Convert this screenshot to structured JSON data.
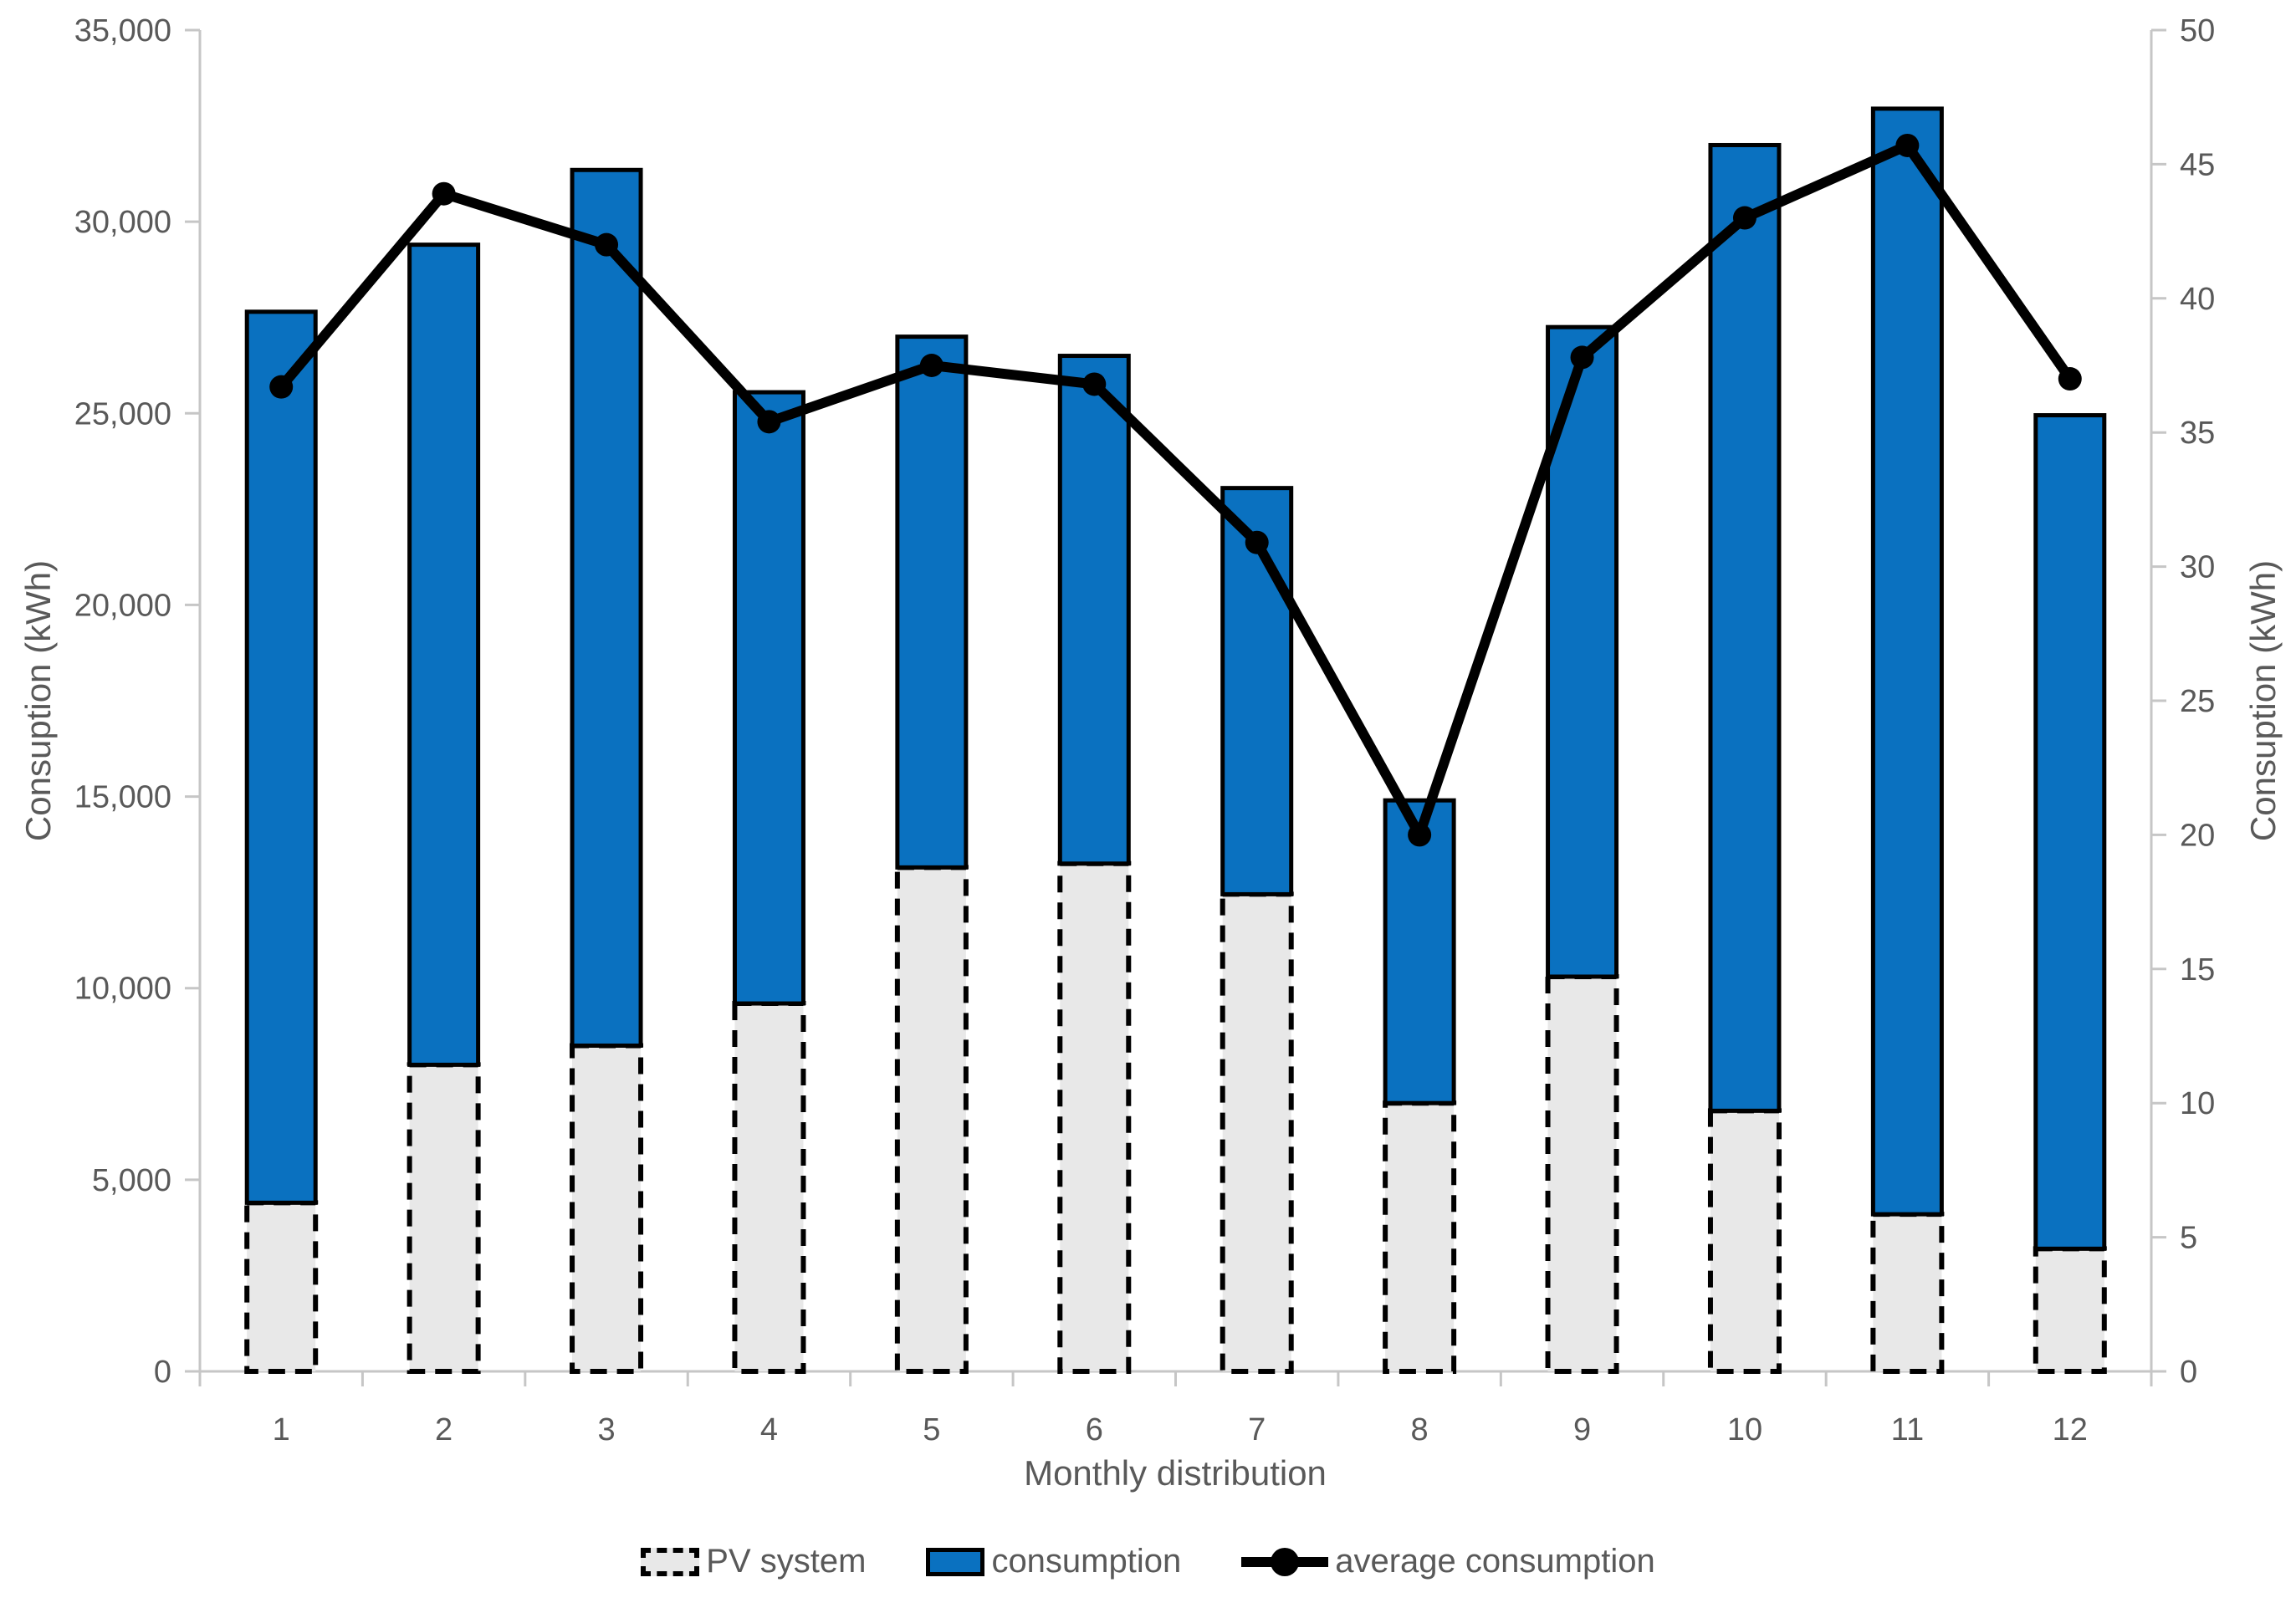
{
  "chart_data": {
    "type": "combo",
    "categories": [
      "1",
      "2",
      "3",
      "4",
      "5",
      "6",
      "7",
      "8",
      "9",
      "10",
      "11",
      "12"
    ],
    "x_axis": {
      "title": "Monthly distribution",
      "tick_labels": [
        "1",
        "2",
        "3",
        "4",
        "5",
        "6",
        "7",
        "8",
        "9",
        "10",
        "11",
        "12"
      ]
    },
    "left_axis": {
      "title": "Consuption (kWh)",
      "min": 0,
      "max": 35000,
      "step": 5000,
      "tick_labels": [
        "0",
        "5,000",
        "10,000",
        "15,000",
        "20,000",
        "25,000",
        "30,000",
        "35,000"
      ]
    },
    "right_axis": {
      "title": "Consuption (kWh)",
      "min": 0,
      "max": 50,
      "step": 5,
      "tick_labels": [
        "0",
        "5",
        "10",
        "15",
        "20",
        "25",
        "30",
        "35",
        "40",
        "45",
        "50"
      ]
    },
    "series": [
      {
        "name": "PV system",
        "type": "bar",
        "stack": "total",
        "axis": "left",
        "color": "#e8e8e8",
        "border_color": "#000000",
        "border_style": "dashed",
        "values": [
          4400,
          8000,
          8500,
          9600,
          13150,
          13250,
          12450,
          7000,
          10300,
          6800,
          4100,
          3200
        ]
      },
      {
        "name": "consumption",
        "type": "bar",
        "stack": "total",
        "axis": "left",
        "color": "#0a71c0",
        "border_color": "#000000",
        "border_style": "solid",
        "values": [
          23250,
          21400,
          22850,
          15950,
          13850,
          13250,
          10600,
          7900,
          16950,
          25200,
          28850,
          21750
        ]
      },
      {
        "name": "average consumption",
        "type": "line",
        "axis": "right",
        "color": "#000000",
        "marker": "circle",
        "values": [
          36.7,
          43.9,
          42.0,
          35.4,
          37.5,
          36.8,
          30.9,
          20.0,
          37.8,
          43.0,
          45.7,
          37.0
        ]
      }
    ],
    "legend_position": "bottom",
    "grid": false
  },
  "colors": {
    "text_gray": "#595959",
    "axis_gray": "#c6c6c6",
    "pv_fill": "#e8e8e8",
    "consumption_blue": "#0a71c0",
    "line_black": "#000000",
    "background": "#ffffff"
  }
}
